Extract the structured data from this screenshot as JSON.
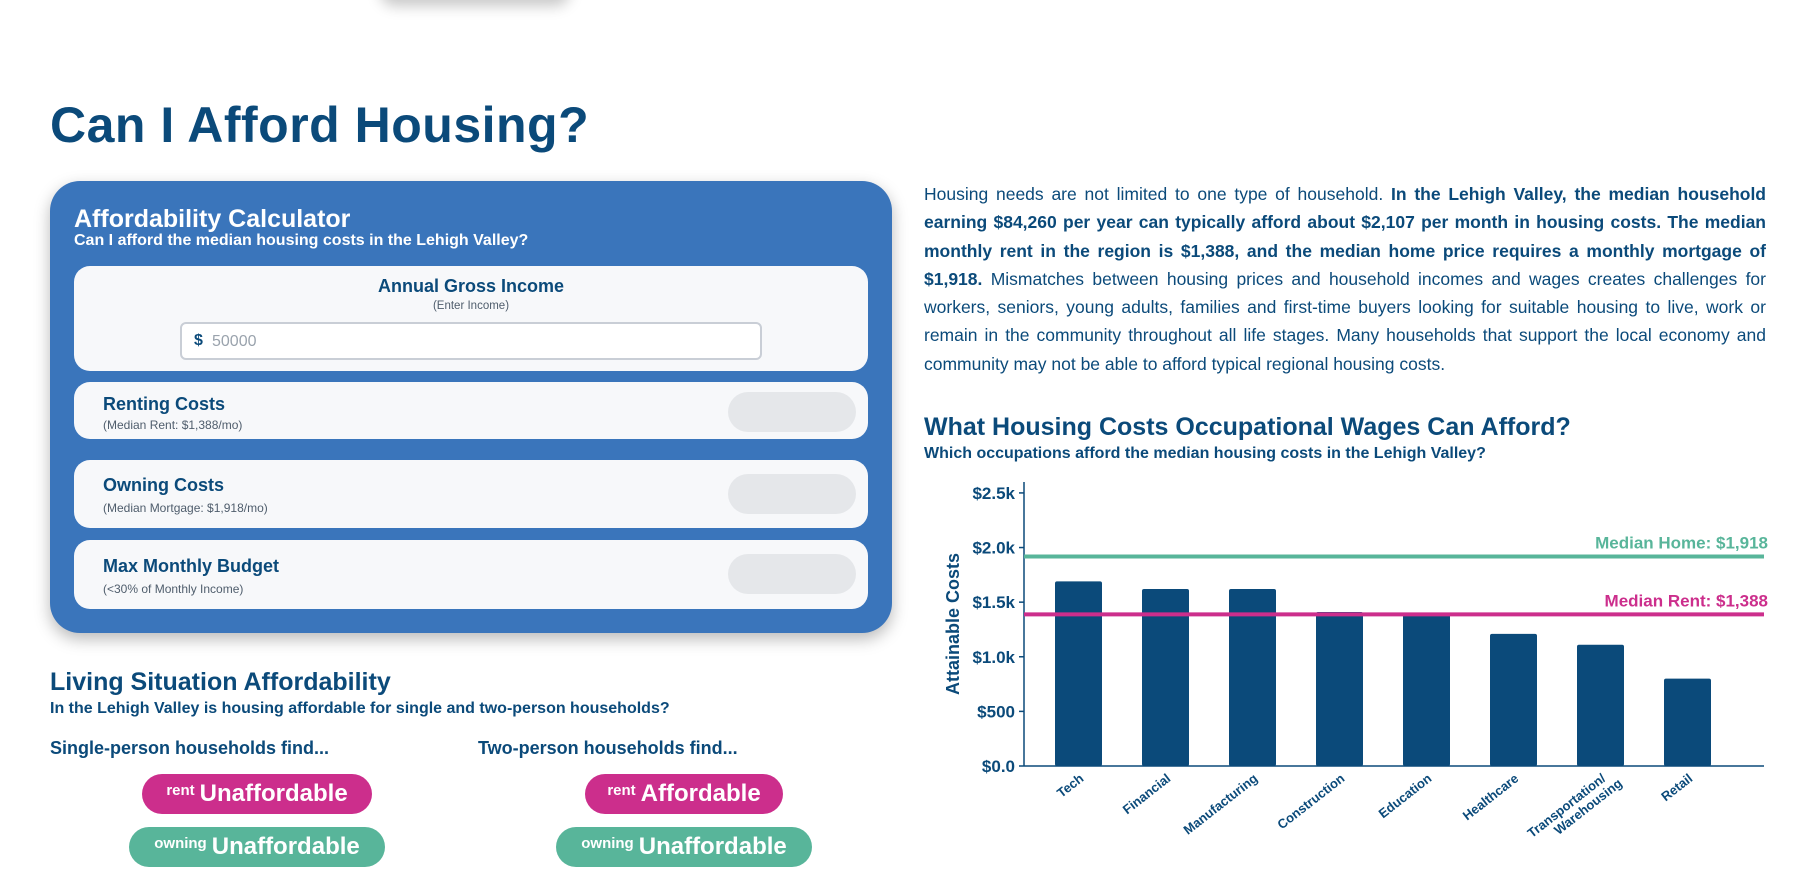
{
  "page": {
    "title": "Can I Afford Housing?"
  },
  "calculator": {
    "title": "Affordability Calculator",
    "subtitle": "Can I afford the median housing costs in the Lehigh Valley?",
    "income_label": "Annual Gross Income",
    "income_hint": "(Enter Income)",
    "currency_symbol": "$",
    "income_placeholder": "50000",
    "income_value": "",
    "rows": [
      {
        "label": "Renting Costs",
        "note": "(Median Rent: $1,388/mo)",
        "value": ""
      },
      {
        "label": "Owning Costs",
        "note": "(Median Mortgage: $1,918/mo)",
        "value": ""
      },
      {
        "label": "Max Monthly Budget",
        "note": "(<30% of Monthly Income)",
        "value": ""
      }
    ]
  },
  "living": {
    "title": "Living Situation Affordability",
    "subtitle": "In the Lehigh Valley is housing affordable for single and two-person households?",
    "single": {
      "heading": "Single-person households find...",
      "rent_tag": "rent",
      "rent_verdict": "Unaffordable",
      "own_tag": "owning",
      "own_verdict": "Unaffordable"
    },
    "two": {
      "heading": "Two-person households find...",
      "rent_tag": "rent",
      "rent_verdict": "Affordable",
      "own_tag": "owning",
      "own_verdict": "Unaffordable"
    }
  },
  "intro": {
    "p1": "Housing needs are not limited to one type of household. ",
    "bold": "In the Lehigh Valley, the median household earning $84,260 per year can typically afford about $2,107 per month in housing costs. The median monthly rent in the region is $1,388, and the median home price requires a monthly mortgage of $1,918.",
    "p2": " Mismatches between housing prices and household incomes and wages creates challenges for workers, seniors, young adults, families and first-time buyers looking for suitable housing to live, work or remain in the community throughout all life stages. Many households that support the local economy and community may not be able to afford typical regional housing costs."
  },
  "chart_section": {
    "title": "What Housing Costs Occupational Wages Can Afford?",
    "subtitle": "Which occupations afford the median housing costs in the Lehigh Valley?"
  },
  "colors": {
    "primary": "#0b4a7a",
    "card": "#3a75bb",
    "rent": "#cc2e8c",
    "own": "#58b59a",
    "bar": "#0b4a7a"
  },
  "chart_data": {
    "type": "bar",
    "ylabel": "Attainable Costs",
    "xlabel": "",
    "categories": [
      "Tech",
      "Financial",
      "Manufacturing",
      "Construction",
      "Education",
      "Healthcare",
      "Transportation/ Warehousing",
      "Retail"
    ],
    "values": [
      1690,
      1620,
      1620,
      1410,
      1390,
      1210,
      1110,
      800
    ],
    "ylim": [
      0,
      2600
    ],
    "yticks": [
      0,
      500,
      1000,
      1500,
      2000,
      2500
    ],
    "ytick_labels": [
      "$0.0",
      "$500",
      "$1.0k",
      "$1.5k",
      "$2.0k",
      "$2.5k"
    ],
    "reference_lines": [
      {
        "label": "Median Home: $1,918",
        "value": 1918,
        "color": "#58b59a"
      },
      {
        "label": "Median Rent: $1,388",
        "value": 1388,
        "color": "#cc2e8c"
      }
    ],
    "grid": false
  }
}
